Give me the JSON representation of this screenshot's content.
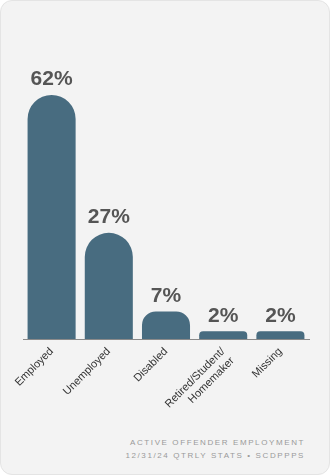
{
  "chart_data": {
    "type": "bar",
    "categories": [
      "Employed",
      "Unemployed",
      "Disabled",
      "Retired/Student/Homemaker",
      "Missing"
    ],
    "values": [
      62,
      27,
      7,
      2,
      2
    ],
    "value_labels": [
      "62%",
      "27%",
      "7%",
      "2%",
      "2%"
    ],
    "data_labels": true,
    "color": "#486c80",
    "grid": false,
    "tick_labels": "x",
    "annotations": [
      "ACTIVE OFFENDER EMPLOYMENT",
      "12/31/24 QTRLY STATS • SCDPPPS"
    ]
  }
}
